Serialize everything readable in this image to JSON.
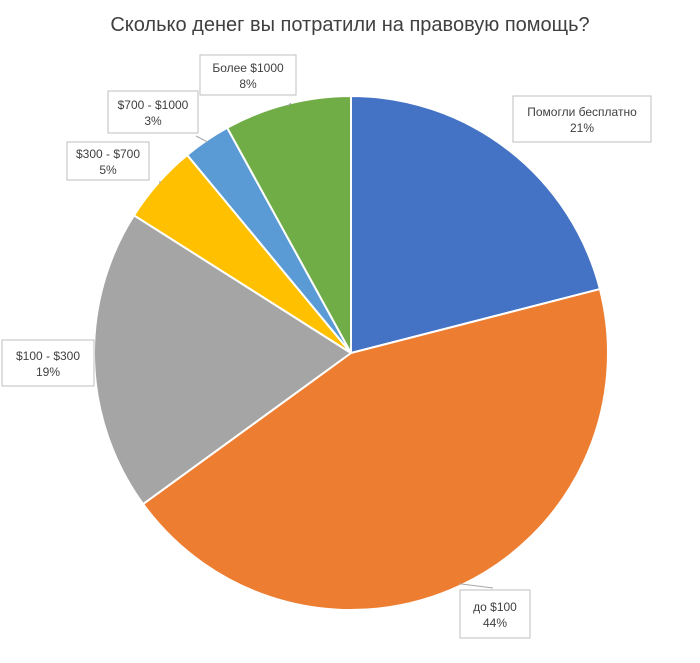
{
  "chart_data": {
    "type": "pie",
    "title": "Сколько денег вы потратили на правовую помощь?",
    "start_angle_deg": 0,
    "direction": "clockwise",
    "slices": [
      {
        "label": "Помогли бесплатно",
        "percent_label": "21%",
        "value": 21,
        "color": "#4472C4"
      },
      {
        "label": "до $100",
        "percent_label": "44%",
        "value": 44,
        "color": "#ED7D31"
      },
      {
        "label": "$100 - $300",
        "percent_label": "19%",
        "value": 19,
        "color": "#A5A5A5"
      },
      {
        "label": "$300 - $700",
        "percent_label": "5%",
        "value": 5,
        "color": "#FFC000"
      },
      {
        "label": "$700 - $1000",
        "percent_label": "3%",
        "value": 3,
        "color": "#5B9BD5"
      },
      {
        "label": "Более $1000",
        "percent_label": "8%",
        "value": 8,
        "color": "#70AD47"
      }
    ]
  }
}
